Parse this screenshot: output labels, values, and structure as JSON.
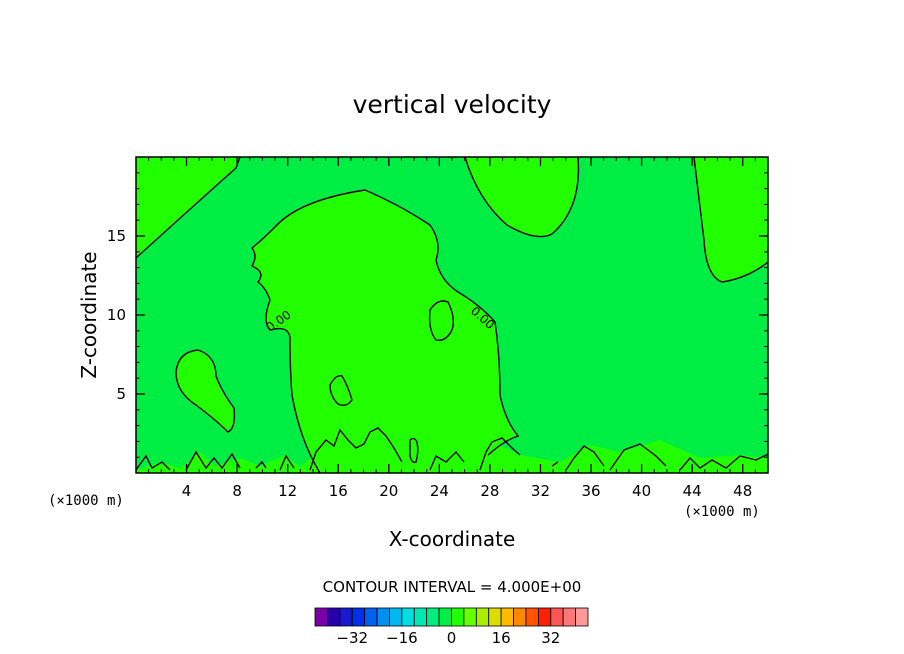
{
  "chart_data": {
    "type": "contour",
    "title": "vertical velocity",
    "xlabel": "X-coordinate",
    "ylabel": "Z-coordinate",
    "x_unit_left": "(×1000 m)",
    "x_unit_right": "(×1000 m)",
    "xlim": [
      0,
      50
    ],
    "ylim": [
      0,
      20
    ],
    "xticks": [
      4,
      8,
      12,
      16,
      20,
      24,
      28,
      32,
      36,
      40,
      44,
      48
    ],
    "yticks": [
      5,
      10,
      15
    ],
    "contour_interval_text": "CONTOUR INTERVAL = 4.000E+00",
    "contour_labels": [
      "0.00",
      "0.00"
    ],
    "background_level_color": "#00ee44",
    "positive_level_color": "#22ff00",
    "outline_color": "#000000",
    "colorbar": {
      "colors": [
        "#7a00a8",
        "#2a00aa",
        "#1a1acc",
        "#0030e8",
        "#0060f0",
        "#0090f0",
        "#00b8f0",
        "#00e0e0",
        "#00e8b0",
        "#00ee80",
        "#00ee44",
        "#22ff00",
        "#66ff00",
        "#aaee00",
        "#dddd00",
        "#ffbb00",
        "#ff8800",
        "#ff5500",
        "#ff2200",
        "#ff5555",
        "#ff7777",
        "#ff9999"
      ],
      "tick_values": [
        -32,
        -16,
        0,
        16,
        32
      ],
      "tick_labels": [
        "−32",
        "−16",
        "0",
        "16",
        "32"
      ],
      "min": -44,
      "max": 44
    }
  }
}
